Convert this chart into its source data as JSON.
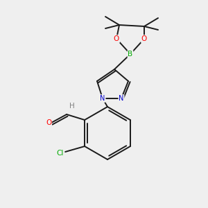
{
  "background_color": "#efefef",
  "bond_color": "#1a1a1a",
  "atom_colors": {
    "O": "#ff0000",
    "N": "#0000cc",
    "B": "#00aa00",
    "Cl": "#00aa00",
    "C": "#1a1a1a",
    "H": "#808080"
  },
  "figsize": [
    3.0,
    3.0
  ],
  "dpi": 100
}
